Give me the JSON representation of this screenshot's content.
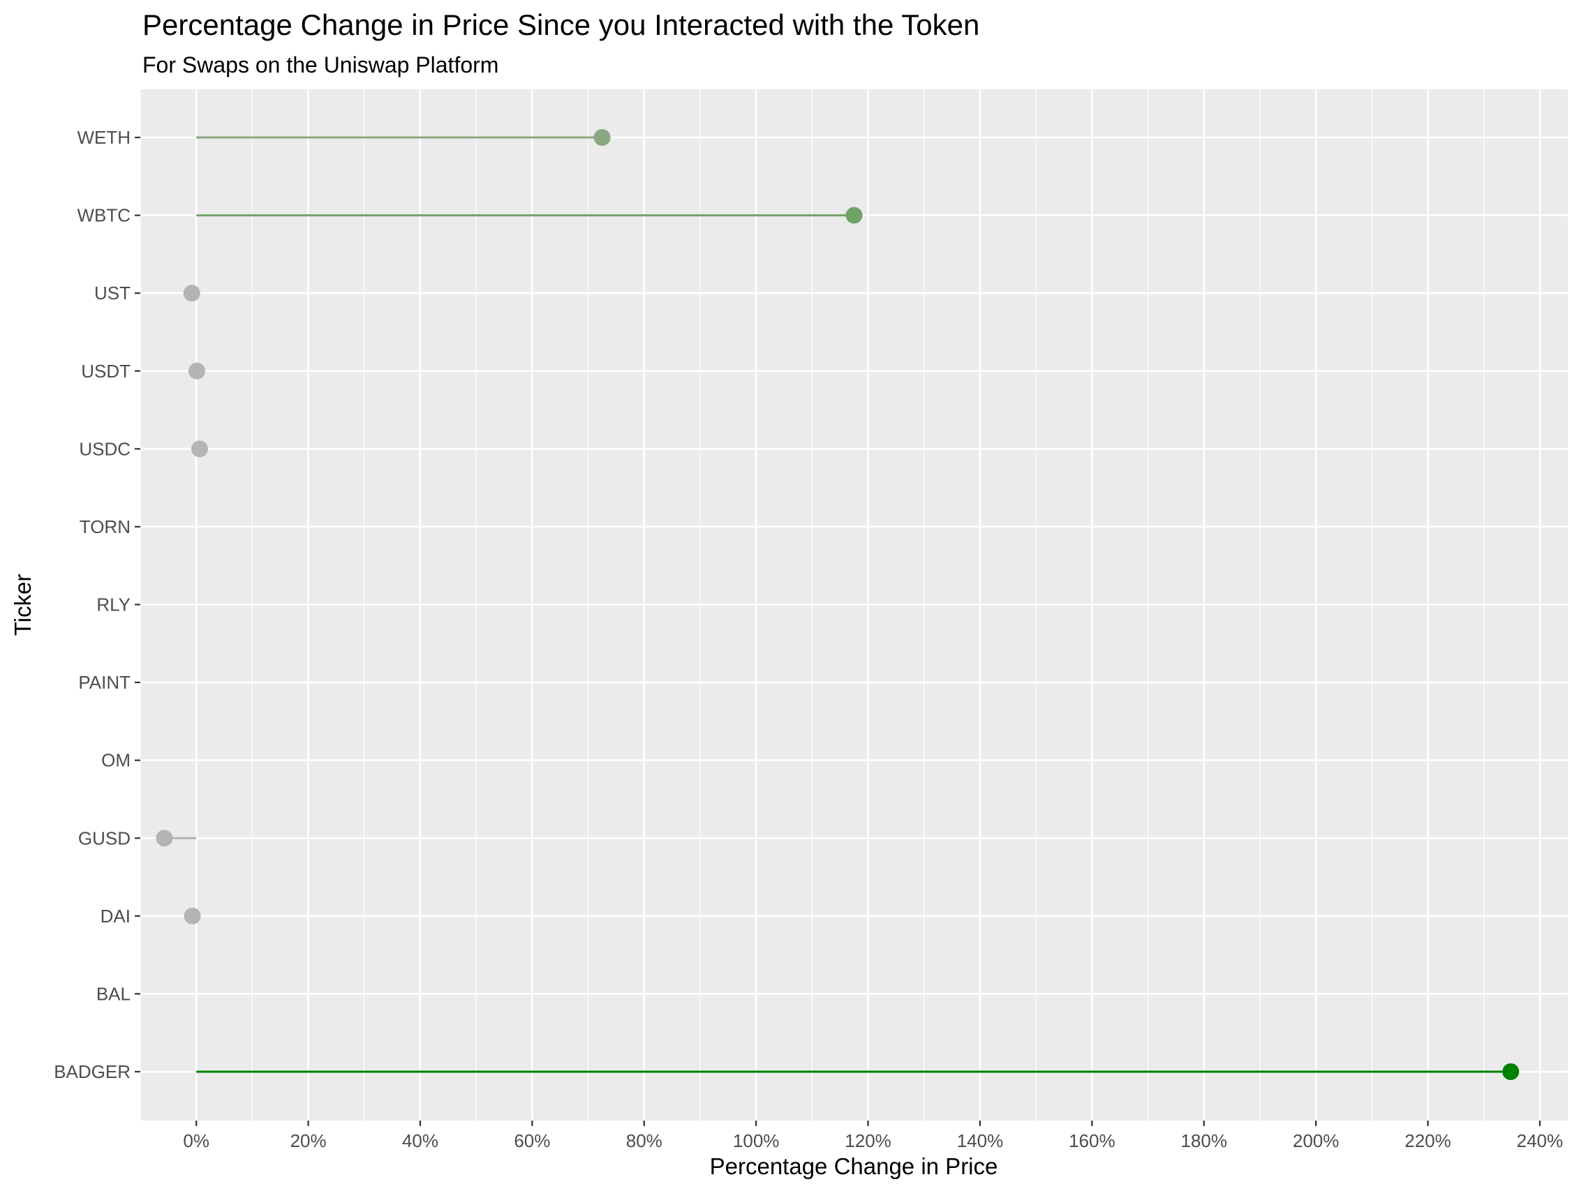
{
  "chart_data": {
    "type": "lollipop",
    "title": "Percentage Change in Price Since you Interacted with the Token",
    "subtitle": "For Swaps on the Uniswap Platform",
    "xlabel": "Percentage Change in Price",
    "ylabel": "Ticker",
    "xlim": [
      -10,
      245
    ],
    "x_ticks": [
      0,
      20,
      40,
      60,
      80,
      100,
      120,
      140,
      160,
      180,
      200,
      220,
      240
    ],
    "x_tick_labels": [
      "0%",
      "20%",
      "40%",
      "60%",
      "80%",
      "100%",
      "120%",
      "140%",
      "160%",
      "180%",
      "200%",
      "220%",
      "240%"
    ],
    "categories": [
      "WETH",
      "WBTC",
      "UST",
      "USDT",
      "USDC",
      "TORN",
      "RLY",
      "PAINT",
      "OM",
      "GUSD",
      "DAI",
      "BAL",
      "BADGER"
    ],
    "values": [
      72.5,
      117.5,
      -0.8,
      0.1,
      0.6,
      null,
      null,
      null,
      null,
      -5.7,
      -0.7,
      null,
      234.8
    ],
    "colors": [
      "#8aa882",
      "#72a366",
      "#b4b4b4",
      "#b4b4b4",
      "#b4b4b4",
      null,
      null,
      null,
      null,
      "#b4b4b4",
      "#b4b4b4",
      null,
      "#008000"
    ],
    "background": "#ebebeb",
    "grid": true,
    "legend": "none"
  }
}
